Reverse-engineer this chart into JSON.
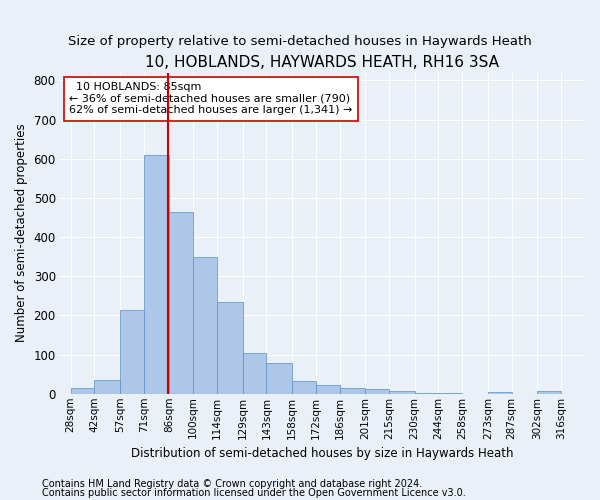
{
  "title": "10, HOBLANDS, HAYWARDS HEATH, RH16 3SA",
  "subtitle": "Size of property relative to semi-detached houses in Haywards Heath",
  "xlabel": "Distribution of semi-detached houses by size in Haywards Heath",
  "ylabel": "Number of semi-detached properties",
  "footer1": "Contains HM Land Registry data © Crown copyright and database right 2024.",
  "footer2": "Contains public sector information licensed under the Open Government Licence v3.0.",
  "property_label": "10 HOBLANDS: 85sqm",
  "pct_smaller": "36% of semi-detached houses are smaller (790)",
  "pct_larger": "62% of semi-detached houses are larger (1,341)",
  "property_value": 85,
  "bar_left_edges": [
    28,
    42,
    57,
    71,
    86,
    100,
    114,
    129,
    143,
    158,
    172,
    186,
    201,
    215,
    230,
    244,
    258,
    273,
    287,
    302
  ],
  "bar_widths": [
    14,
    15,
    14,
    15,
    14,
    14,
    15,
    14,
    15,
    14,
    14,
    15,
    14,
    15,
    14,
    14,
    15,
    14,
    15,
    14
  ],
  "bar_heights": [
    15,
    35,
    215,
    610,
    465,
    350,
    235,
    105,
    78,
    33,
    22,
    15,
    12,
    8,
    3,
    1,
    0,
    5,
    0,
    7
  ],
  "tick_labels": [
    "28sqm",
    "42sqm",
    "57sqm",
    "71sqm",
    "86sqm",
    "100sqm",
    "114sqm",
    "129sqm",
    "143sqm",
    "158sqm",
    "172sqm",
    "186sqm",
    "201sqm",
    "215sqm",
    "230sqm",
    "244sqm",
    "258sqm",
    "273sqm",
    "287sqm",
    "302sqm",
    "316sqm"
  ],
  "tick_positions": [
    28,
    42,
    57,
    71,
    86,
    100,
    114,
    129,
    143,
    158,
    172,
    186,
    201,
    215,
    230,
    244,
    258,
    273,
    287,
    302,
    316
  ],
  "bar_color": "#aec6e8",
  "bar_edge_color": "#5a8fc2",
  "vline_color": "#cc0000",
  "vline_x": 85,
  "ylim": [
    0,
    820
  ],
  "xlim": [
    21,
    330
  ],
  "bg_color": "#eaf0f8",
  "plot_bg_color": "#eaf0f8",
  "grid_color": "#ffffff",
  "title_fontsize": 11,
  "subtitle_fontsize": 9.5,
  "annotation_fontsize": 8,
  "axis_label_fontsize": 8.5,
  "tick_fontsize": 7.5,
  "footer_fontsize": 7
}
